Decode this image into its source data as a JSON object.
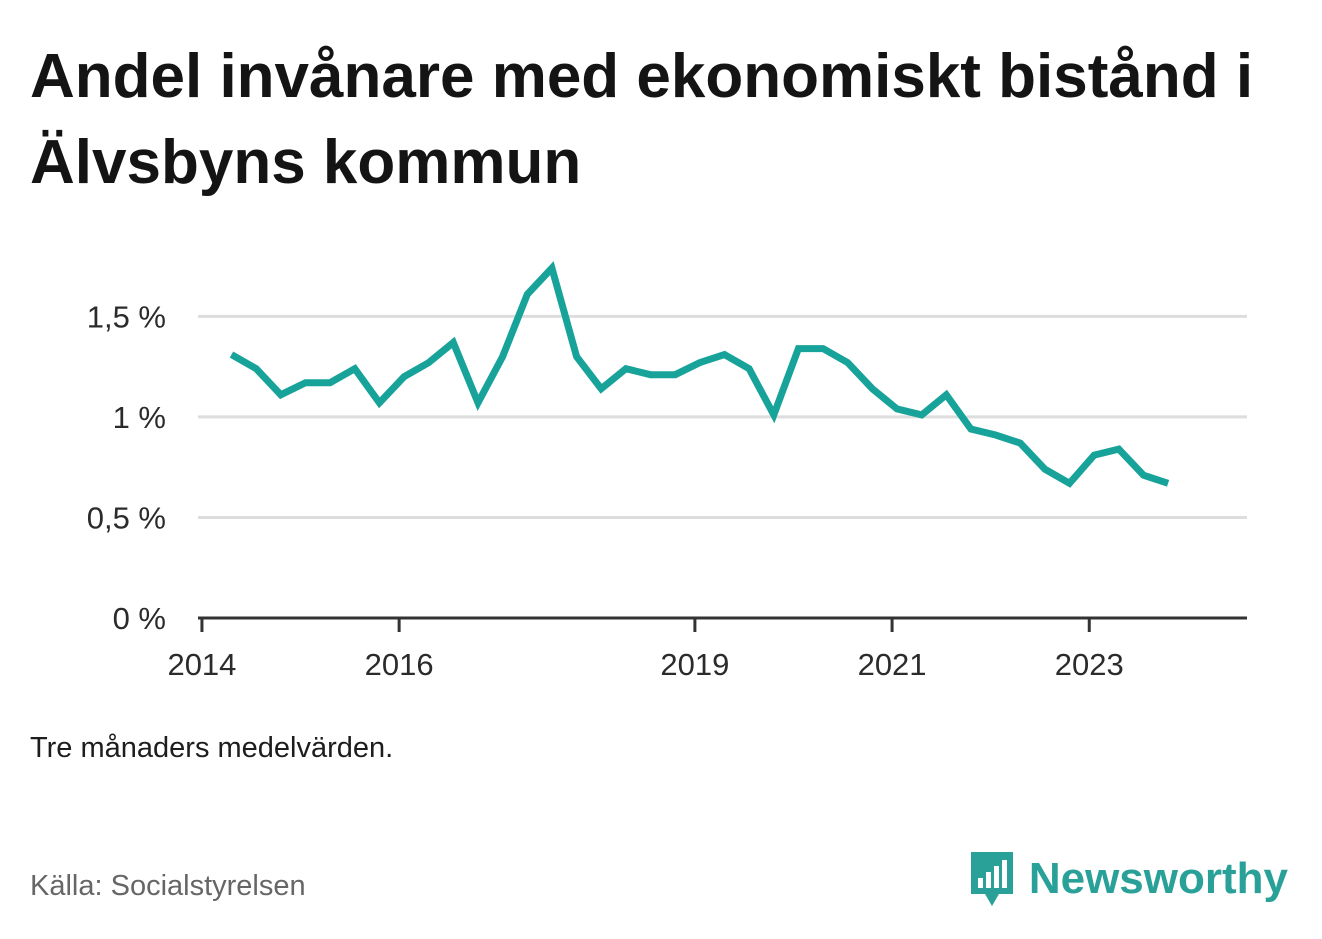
{
  "title": "Andel invånare med ekonomiskt bistånd i Älvsbyns kommun",
  "note": "Tre månaders medelvärden.",
  "source": "Källa: Socialstyrelsen",
  "brand": "Newsworthy",
  "colors": {
    "line": "#17a39a",
    "brand": "#2aa198",
    "grid": "#dddddd",
    "axis": "#333333"
  },
  "chart_data": {
    "type": "line",
    "title": "Andel invånare med ekonomiskt bistånd i Älvsbyns kommun",
    "xlabel": "",
    "ylabel": "",
    "ylim": [
      0,
      1.85
    ],
    "xlim": [
      2013.96,
      2024.6
    ],
    "yticks": [
      {
        "value": 0,
        "label": "0 %"
      },
      {
        "value": 0.5,
        "label": "0,5 %"
      },
      {
        "value": 1.0,
        "label": "1 %"
      },
      {
        "value": 1.5,
        "label": "1,5 %"
      }
    ],
    "xticks": [
      {
        "value": 2014,
        "label": "2014"
      },
      {
        "value": 2016,
        "label": "2016"
      },
      {
        "value": 2019,
        "label": "2019"
      },
      {
        "value": 2021,
        "label": "2021"
      },
      {
        "value": 2023,
        "label": "2023"
      }
    ],
    "grid": true,
    "legend": "none",
    "series": [
      {
        "x": [
          2014.3,
          2014.55,
          2014.8,
          2015.05,
          2015.3,
          2015.55,
          2015.8,
          2016.05,
          2016.3,
          2016.55,
          2016.8,
          2017.05,
          2017.3,
          2017.55,
          2017.8,
          2018.05,
          2018.3,
          2018.55,
          2018.8,
          2019.05,
          2019.3,
          2019.55,
          2019.8,
          2020.05,
          2020.3,
          2020.55,
          2020.8,
          2021.05,
          2021.3,
          2021.55,
          2021.8,
          2022.05,
          2022.3,
          2022.55,
          2022.8,
          2023.05,
          2023.3,
          2023.55,
          2023.8
        ],
        "y": [
          1.31,
          1.24,
          1.11,
          1.17,
          1.17,
          1.24,
          1.07,
          1.2,
          1.27,
          1.37,
          1.07,
          1.3,
          1.61,
          1.74,
          1.3,
          1.14,
          1.24,
          1.21,
          1.21,
          1.27,
          1.31,
          1.24,
          1.01,
          1.34,
          1.34,
          1.27,
          1.14,
          1.04,
          1.01,
          1.11,
          0.94,
          0.91,
          0.87,
          0.74,
          0.67,
          0.81,
          0.84,
          0.71,
          0.67
        ]
      }
    ]
  }
}
